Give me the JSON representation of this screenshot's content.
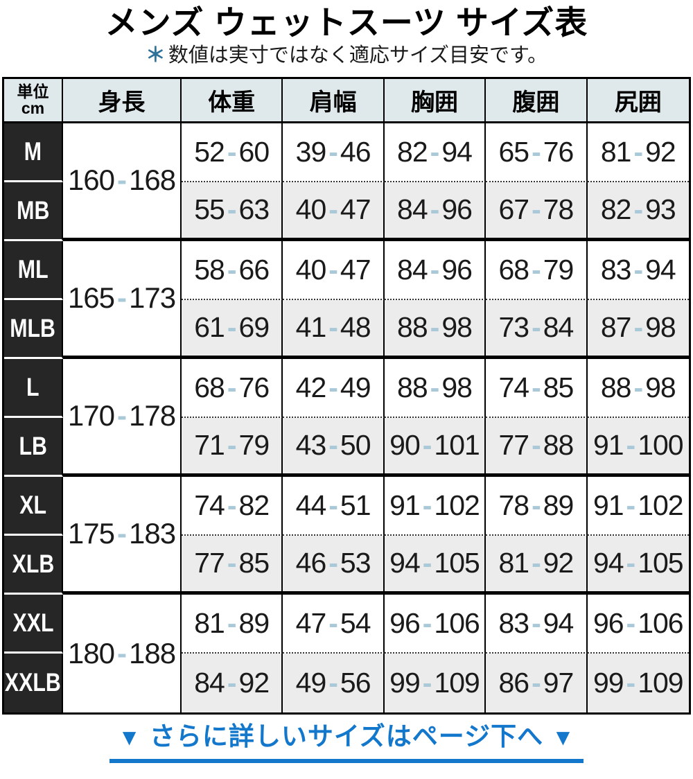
{
  "page": {
    "title": "メンズ ウェットスーツ サイズ表",
    "subtitle_mark": "＊",
    "subtitle": "数値は実寸ではなく適応サイズ目安です。",
    "footer": {
      "arrow": "▼",
      "text": "さらに詳しいサイズはページ下へ"
    }
  },
  "colors": {
    "footer_blue": "#1377cc",
    "note_mark_blue": "#2e7199",
    "range_dash_blue": "#a9c8d8",
    "header_bg": "#dfe9ec",
    "label_bg": "#262626",
    "alt_row_bg": "#ececec"
  },
  "table": {
    "unit_header": {
      "line1": "単位",
      "line2": "cm"
    },
    "columns": [
      "身長",
      "体重",
      "肩幅",
      "胸囲",
      "腹囲",
      "尻囲"
    ],
    "range_separator": "-",
    "pairs": [
      {
        "height": [
          "160",
          "168"
        ],
        "rows": [
          {
            "label": "M",
            "values": [
              [
                "52",
                "60"
              ],
              [
                "39",
                "46"
              ],
              [
                "82",
                "94"
              ],
              [
                "65",
                "76"
              ],
              [
                "81",
                "92"
              ]
            ]
          },
          {
            "label": "MB",
            "values": [
              [
                "55",
                "63"
              ],
              [
                "40",
                "47"
              ],
              [
                "84",
                "96"
              ],
              [
                "67",
                "78"
              ],
              [
                "82",
                "93"
              ]
            ]
          }
        ]
      },
      {
        "height": [
          "165",
          "173"
        ],
        "rows": [
          {
            "label": "ML",
            "values": [
              [
                "58",
                "66"
              ],
              [
                "40",
                "47"
              ],
              [
                "84",
                "96"
              ],
              [
                "68",
                "79"
              ],
              [
                "83",
                "94"
              ]
            ]
          },
          {
            "label": "MLB",
            "values": [
              [
                "61",
                "69"
              ],
              [
                "41",
                "48"
              ],
              [
                "88",
                "98"
              ],
              [
                "73",
                "84"
              ],
              [
                "87",
                "98"
              ]
            ]
          }
        ]
      },
      {
        "height": [
          "170",
          "178"
        ],
        "rows": [
          {
            "label": "L",
            "values": [
              [
                "68",
                "76"
              ],
              [
                "42",
                "49"
              ],
              [
                "88",
                "98"
              ],
              [
                "74",
                "85"
              ],
              [
                "88",
                "98"
              ]
            ]
          },
          {
            "label": "LB",
            "values": [
              [
                "71",
                "79"
              ],
              [
                "43",
                "50"
              ],
              [
                "90",
                "101"
              ],
              [
                "77",
                "88"
              ],
              [
                "91",
                "100"
              ]
            ]
          }
        ]
      },
      {
        "height": [
          "175",
          "183"
        ],
        "rows": [
          {
            "label": "XL",
            "values": [
              [
                "74",
                "82"
              ],
              [
                "44",
                "51"
              ],
              [
                "91",
                "102"
              ],
              [
                "78",
                "89"
              ],
              [
                "91",
                "102"
              ]
            ]
          },
          {
            "label": "XLB",
            "values": [
              [
                "77",
                "85"
              ],
              [
                "46",
                "53"
              ],
              [
                "94",
                "105"
              ],
              [
                "81",
                "92"
              ],
              [
                "94",
                "105"
              ]
            ]
          }
        ]
      },
      {
        "height": [
          "180",
          "188"
        ],
        "rows": [
          {
            "label": "XXL",
            "values": [
              [
                "81",
                "89"
              ],
              [
                "47",
                "54"
              ],
              [
                "96",
                "106"
              ],
              [
                "83",
                "94"
              ],
              [
                "96",
                "106"
              ]
            ]
          },
          {
            "label": "XXLB",
            "values": [
              [
                "84",
                "92"
              ],
              [
                "49",
                "56"
              ],
              [
                "99",
                "109"
              ],
              [
                "86",
                "97"
              ],
              [
                "99",
                "109"
              ]
            ]
          }
        ]
      }
    ]
  }
}
